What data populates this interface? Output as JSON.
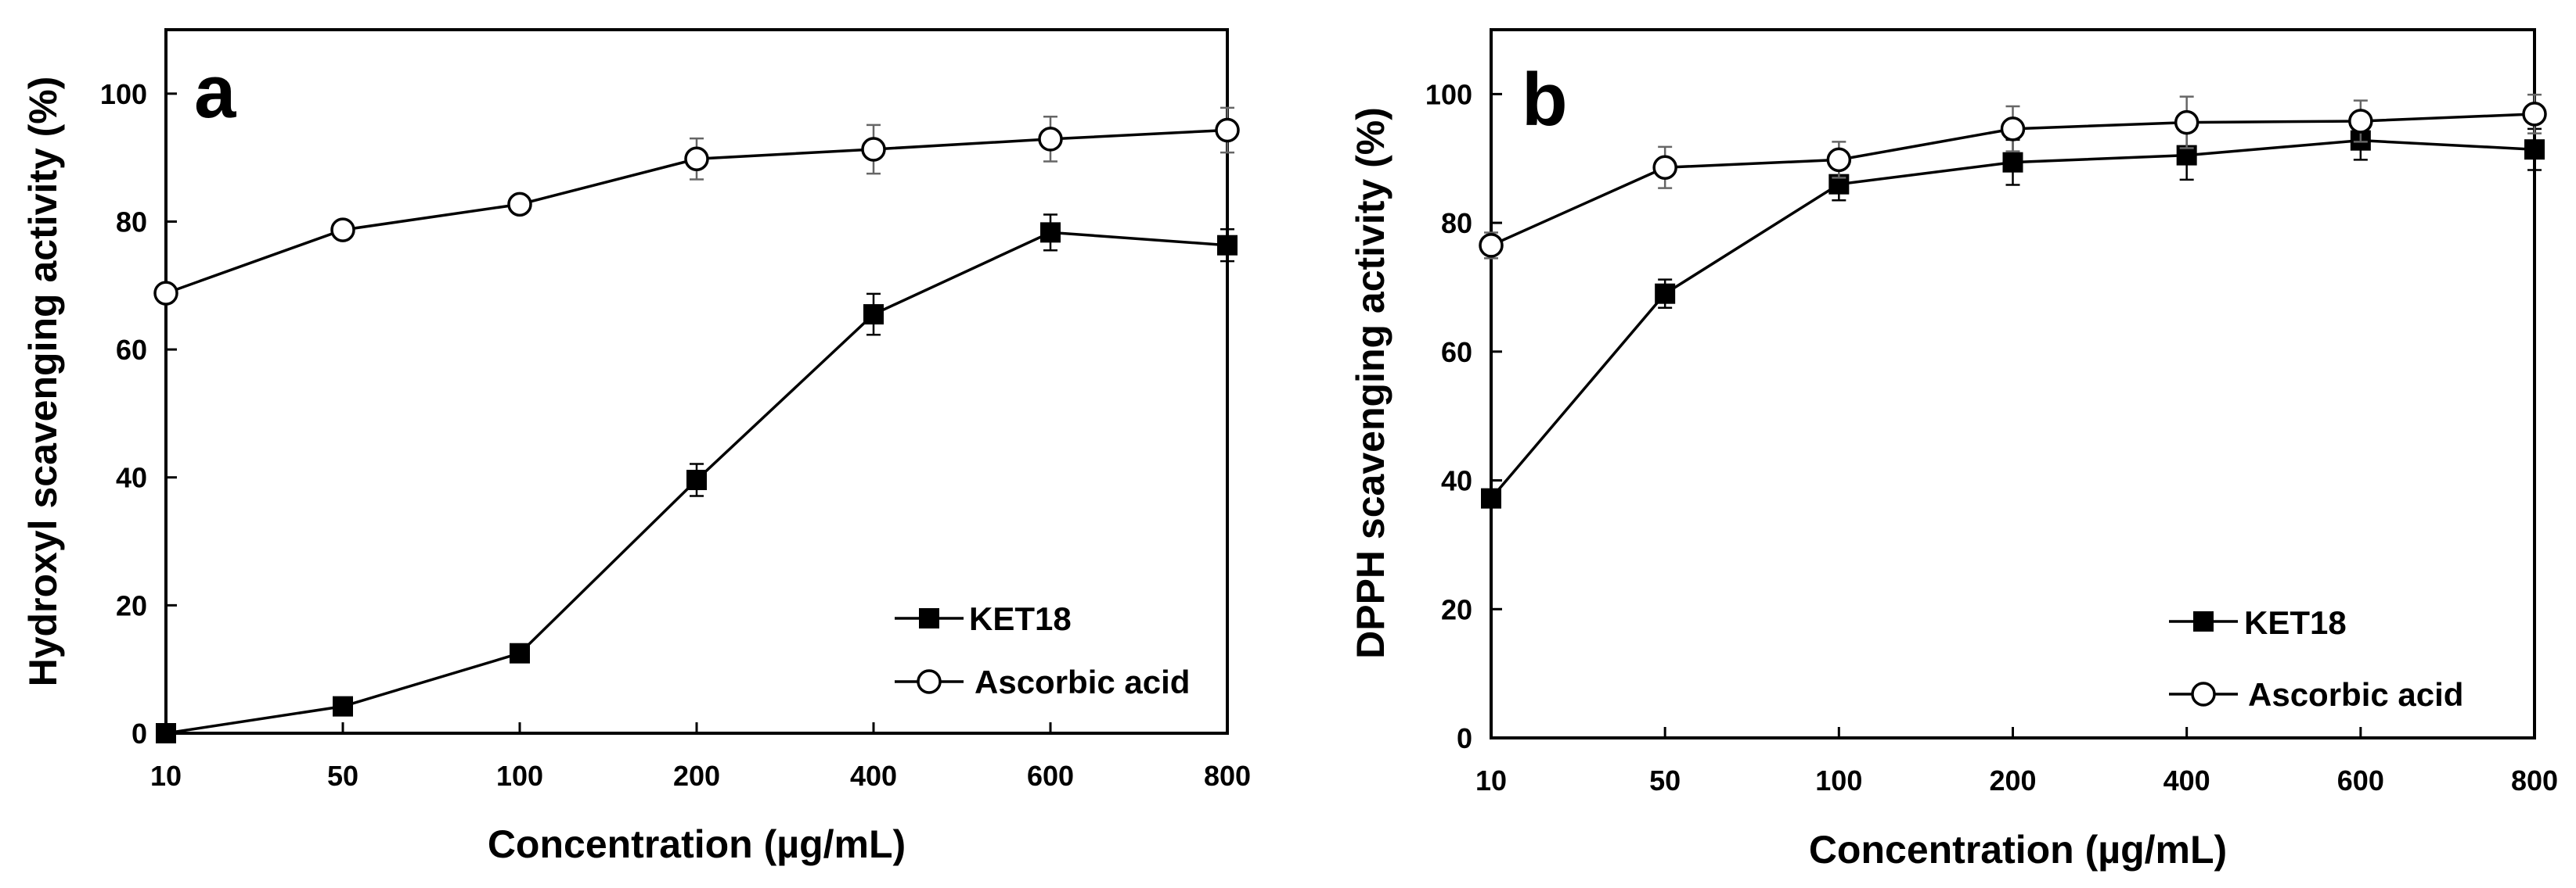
{
  "chart_data": [
    {
      "type": "line",
      "panel_label": "a",
      "xlabel": "Concentration (µg/mL)",
      "ylabel": "Hydroxyl scavenging activity (%)",
      "categories": [
        "10",
        "50",
        "100",
        "200",
        "400",
        "600",
        "800"
      ],
      "ylim": [
        0,
        110
      ],
      "yticks": [
        "0",
        "20",
        "40",
        "60",
        "80",
        "100"
      ],
      "legend_position": "bottom-right",
      "series": [
        {
          "name": "KET18",
          "marker": "filled-square",
          "values": [
            0,
            4.2,
            12.5,
            39.6,
            65.5,
            78.3,
            76.3
          ],
          "errors": [
            0.5,
            0.8,
            1.2,
            2.5,
            3.2,
            2.8,
            2.5
          ]
        },
        {
          "name": "Ascorbic acid",
          "marker": "open-circle",
          "values": [
            68.8,
            78.7,
            82.7,
            89.8,
            91.3,
            92.9,
            94.3
          ],
          "errors": [
            0.8,
            0.8,
            1.2,
            3.2,
            3.8,
            3.5,
            3.5
          ]
        }
      ]
    },
    {
      "type": "line",
      "panel_label": "b",
      "xlabel": "Concentration (µg/mL)",
      "ylabel": "DPPH scavenging activity (%)",
      "categories": [
        "10",
        "50",
        "100",
        "200",
        "400",
        "600",
        "800"
      ],
      "ylim": [
        0,
        110
      ],
      "yticks": [
        "0",
        "20",
        "40",
        "60",
        "80",
        "100"
      ],
      "legend_position": "bottom-right",
      "series": [
        {
          "name": "KET18",
          "marker": "filled-square",
          "values": [
            37.2,
            69.0,
            86.0,
            89.4,
            90.5,
            92.8,
            91.4
          ],
          "errors": [
            1.0,
            2.2,
            2.5,
            3.5,
            3.8,
            3.0,
            3.2
          ]
        },
        {
          "name": "Ascorbic acid",
          "marker": "open-circle",
          "values": [
            76.5,
            88.6,
            89.8,
            94.6,
            95.6,
            95.8,
            96.9
          ],
          "errors": [
            2.0,
            3.2,
            2.8,
            3.5,
            4.0,
            3.2,
            3.0
          ]
        }
      ]
    }
  ]
}
